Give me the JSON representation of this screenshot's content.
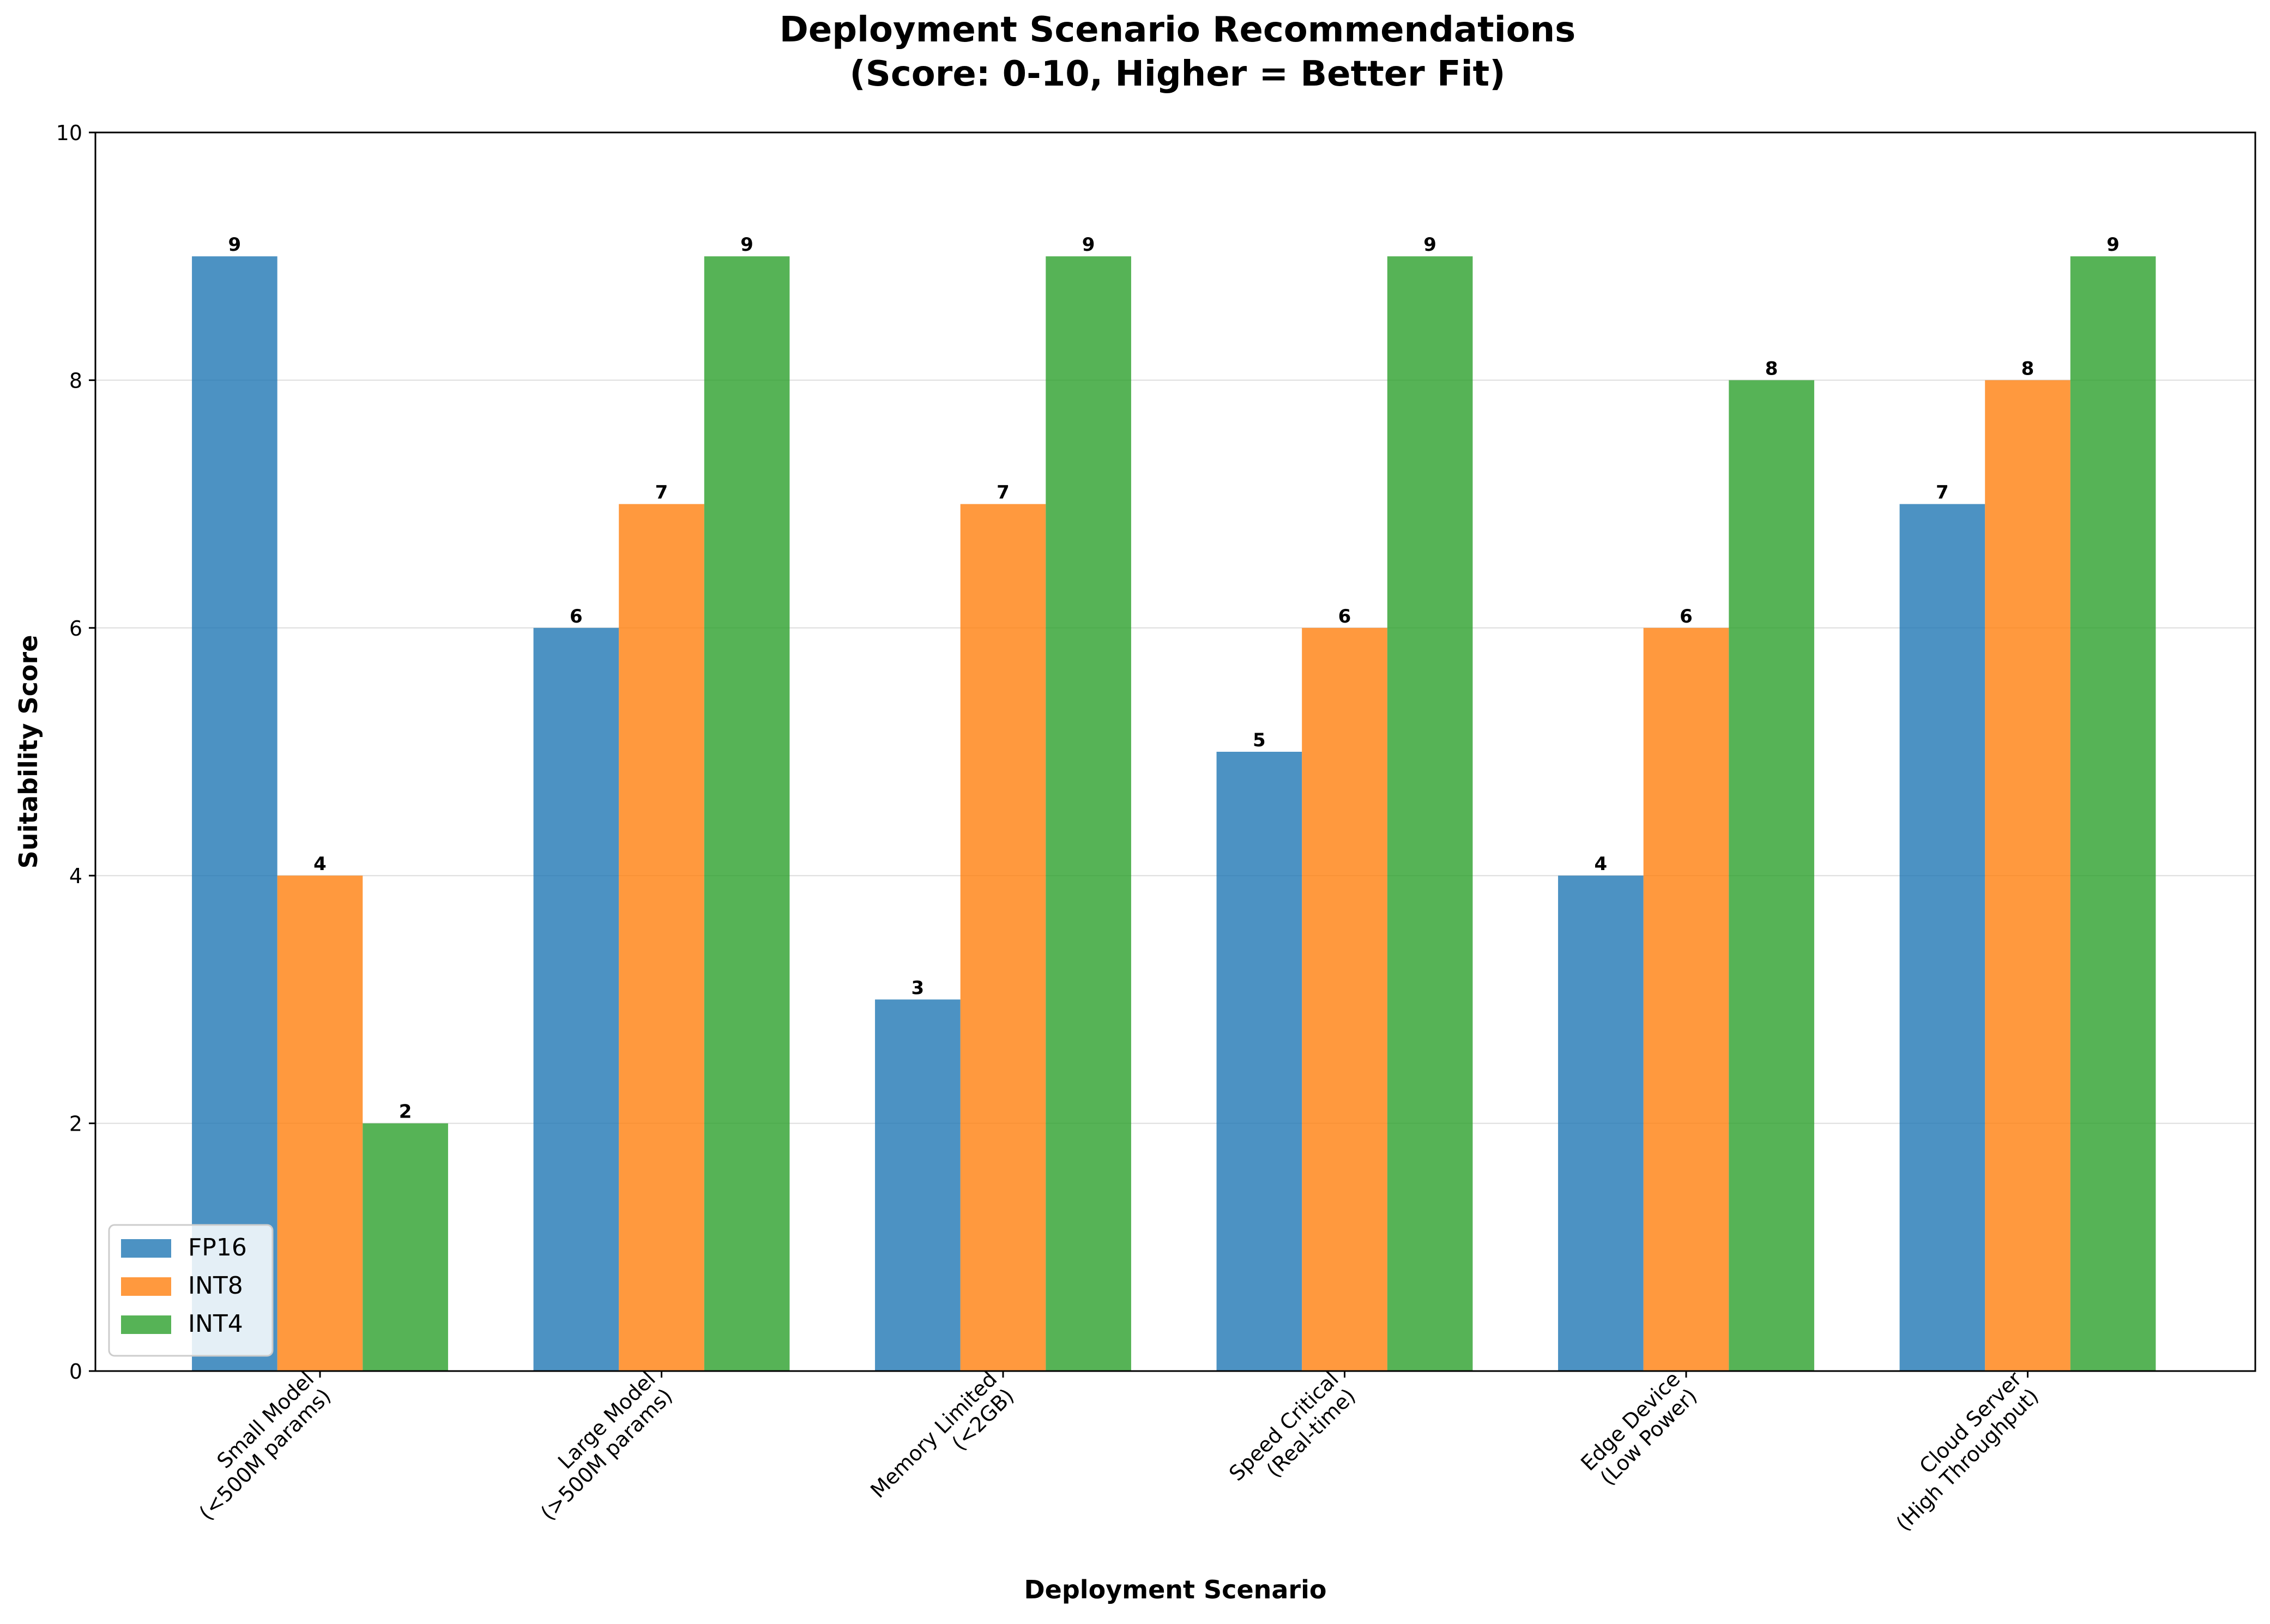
{
  "chart_data": {
    "type": "bar",
    "title_line1": "Deployment Scenario Recommendations",
    "title_line2": "(Score: 0-10, Higher = Better Fit)",
    "xlabel": "Deployment Scenario",
    "ylabel": "Suitability Score",
    "ylim": [
      0,
      10
    ],
    "yticks": [
      "0",
      "2",
      "4",
      "6",
      "8",
      "10"
    ],
    "grid": "horizontal",
    "legend_position": "lower-left",
    "categories": [
      [
        "Small Model",
        "(<500M params)"
      ],
      [
        "Large Model",
        "(>500M params)"
      ],
      [
        "Memory Limited",
        "(<2GB)"
      ],
      [
        "Speed Critical",
        "(Real-time)"
      ],
      [
        "Edge Device",
        "(Low Power)"
      ],
      [
        "Cloud Server",
        "(High Throughput)"
      ]
    ],
    "series": [
      {
        "name": "FP16",
        "color": "#1f77b4",
        "values": [
          9,
          6,
          3,
          5,
          4,
          7
        ]
      },
      {
        "name": "INT8",
        "color": "#ff7f0e",
        "values": [
          4,
          7,
          7,
          6,
          6,
          8
        ]
      },
      {
        "name": "INT4",
        "color": "#2ca02c",
        "values": [
          2,
          9,
          9,
          9,
          8,
          9
        ]
      }
    ]
  }
}
